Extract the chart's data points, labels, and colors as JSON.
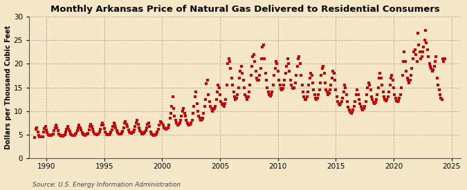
{
  "title": "Monthly Arkansas Price of Natural Gas Delivered to Residential Consumers",
  "ylabel": "Dollars per Thousand Cubic Feet",
  "source": "Source: U.S. Energy Information Administration",
  "background_color": "#f5e8c8",
  "plot_background_color": "#f5e8c8",
  "marker_color": "#cc0000",
  "xlim": [
    1988.5,
    2025.8
  ],
  "ylim": [
    0,
    30
  ],
  "yticks": [
    0,
    5,
    10,
    15,
    20,
    25,
    30
  ],
  "xticks": [
    1990,
    1995,
    2000,
    2005,
    2010,
    2015,
    2020,
    2025
  ],
  "data": [
    [
      1989.0,
      4.4
    ],
    [
      1989.08,
      6.2
    ],
    [
      1989.17,
      6.5
    ],
    [
      1989.25,
      5.5
    ],
    [
      1989.33,
      4.8
    ],
    [
      1989.42,
      4.6
    ],
    [
      1989.5,
      4.5
    ],
    [
      1989.58,
      4.5
    ],
    [
      1989.67,
      4.6
    ],
    [
      1989.75,
      5.5
    ],
    [
      1989.83,
      6.3
    ],
    [
      1989.92,
      6.8
    ],
    [
      1990.0,
      6.0
    ],
    [
      1990.08,
      5.4
    ],
    [
      1990.17,
      5.0
    ],
    [
      1990.25,
      4.8
    ],
    [
      1990.33,
      4.8
    ],
    [
      1990.42,
      4.9
    ],
    [
      1990.5,
      5.0
    ],
    [
      1990.58,
      5.2
    ],
    [
      1990.67,
      5.8
    ],
    [
      1990.75,
      6.5
    ],
    [
      1990.83,
      7.0
    ],
    [
      1990.92,
      6.5
    ],
    [
      1991.0,
      5.8
    ],
    [
      1991.08,
      5.2
    ],
    [
      1991.17,
      4.9
    ],
    [
      1991.25,
      4.8
    ],
    [
      1991.33,
      4.7
    ],
    [
      1991.42,
      4.7
    ],
    [
      1991.5,
      4.8
    ],
    [
      1991.58,
      5.0
    ],
    [
      1991.67,
      5.5
    ],
    [
      1991.75,
      6.2
    ],
    [
      1991.83,
      6.8
    ],
    [
      1991.92,
      6.2
    ],
    [
      1992.0,
      5.7
    ],
    [
      1992.08,
      5.2
    ],
    [
      1992.17,
      5.0
    ],
    [
      1992.25,
      4.9
    ],
    [
      1992.33,
      4.8
    ],
    [
      1992.42,
      4.9
    ],
    [
      1992.5,
      5.1
    ],
    [
      1992.58,
      5.3
    ],
    [
      1992.67,
      5.9
    ],
    [
      1992.75,
      6.4
    ],
    [
      1992.83,
      7.0
    ],
    [
      1992.92,
      6.5
    ],
    [
      1993.0,
      6.0
    ],
    [
      1993.08,
      5.4
    ],
    [
      1993.17,
      5.1
    ],
    [
      1993.25,
      5.0
    ],
    [
      1993.33,
      4.9
    ],
    [
      1993.42,
      5.0
    ],
    [
      1993.5,
      5.1
    ],
    [
      1993.58,
      5.3
    ],
    [
      1993.67,
      6.0
    ],
    [
      1993.75,
      6.8
    ],
    [
      1993.83,
      7.2
    ],
    [
      1993.92,
      6.8
    ],
    [
      1994.0,
      6.2
    ],
    [
      1994.08,
      5.5
    ],
    [
      1994.17,
      5.2
    ],
    [
      1994.25,
      5.1
    ],
    [
      1994.33,
      5.0
    ],
    [
      1994.42,
      5.1
    ],
    [
      1994.5,
      5.2
    ],
    [
      1994.58,
      5.5
    ],
    [
      1994.67,
      6.2
    ],
    [
      1994.75,
      7.0
    ],
    [
      1994.83,
      7.5
    ],
    [
      1994.92,
      7.0
    ],
    [
      1995.0,
      6.3
    ],
    [
      1995.08,
      5.6
    ],
    [
      1995.17,
      5.2
    ],
    [
      1995.25,
      5.0
    ],
    [
      1995.33,
      5.0
    ],
    [
      1995.42,
      5.0
    ],
    [
      1995.5,
      5.2
    ],
    [
      1995.58,
      5.5
    ],
    [
      1995.67,
      6.0
    ],
    [
      1995.75,
      6.8
    ],
    [
      1995.83,
      7.5
    ],
    [
      1995.92,
      7.0
    ],
    [
      1996.0,
      6.5
    ],
    [
      1996.08,
      5.8
    ],
    [
      1996.17,
      5.4
    ],
    [
      1996.25,
      5.2
    ],
    [
      1996.33,
      5.1
    ],
    [
      1996.42,
      5.2
    ],
    [
      1996.5,
      5.4
    ],
    [
      1996.58,
      5.7
    ],
    [
      1996.67,
      6.4
    ],
    [
      1996.75,
      7.5
    ],
    [
      1996.83,
      7.8
    ],
    [
      1996.92,
      7.2
    ],
    [
      1997.0,
      6.8
    ],
    [
      1997.08,
      6.0
    ],
    [
      1997.17,
      5.6
    ],
    [
      1997.25,
      5.4
    ],
    [
      1997.33,
      5.3
    ],
    [
      1997.42,
      5.4
    ],
    [
      1997.5,
      5.6
    ],
    [
      1997.58,
      6.0
    ],
    [
      1997.67,
      6.8
    ],
    [
      1997.75,
      7.5
    ],
    [
      1997.83,
      8.0
    ],
    [
      1997.92,
      7.2
    ],
    [
      1998.0,
      6.5
    ],
    [
      1998.08,
      5.9
    ],
    [
      1998.17,
      5.5
    ],
    [
      1998.25,
      5.3
    ],
    [
      1998.33,
      5.2
    ],
    [
      1998.42,
      5.3
    ],
    [
      1998.5,
      5.5
    ],
    [
      1998.58,
      5.8
    ],
    [
      1998.67,
      6.5
    ],
    [
      1998.75,
      7.2
    ],
    [
      1998.83,
      7.5
    ],
    [
      1998.92,
      6.8
    ],
    [
      1999.0,
      5.6
    ],
    [
      1999.08,
      5.2
    ],
    [
      1999.17,
      5.0
    ],
    [
      1999.25,
      4.9
    ],
    [
      1999.33,
      4.9
    ],
    [
      1999.42,
      5.0
    ],
    [
      1999.5,
      5.2
    ],
    [
      1999.58,
      5.5
    ],
    [
      1999.67,
      6.2
    ],
    [
      1999.75,
      7.0
    ],
    [
      1999.83,
      7.8
    ],
    [
      1999.92,
      7.5
    ],
    [
      2000.0,
      7.5
    ],
    [
      2000.08,
      7.0
    ],
    [
      2000.17,
      6.5
    ],
    [
      2000.25,
      6.3
    ],
    [
      2000.33,
      6.2
    ],
    [
      2000.42,
      6.3
    ],
    [
      2000.5,
      6.5
    ],
    [
      2000.58,
      7.0
    ],
    [
      2000.67,
      8.5
    ],
    [
      2000.75,
      9.5
    ],
    [
      2000.83,
      11.0
    ],
    [
      2000.92,
      13.0
    ],
    [
      2001.0,
      10.5
    ],
    [
      2001.08,
      9.0
    ],
    [
      2001.17,
      8.0
    ],
    [
      2001.25,
      7.5
    ],
    [
      2001.33,
      7.0
    ],
    [
      2001.42,
      7.2
    ],
    [
      2001.5,
      7.5
    ],
    [
      2001.58,
      8.0
    ],
    [
      2001.67,
      9.0
    ],
    [
      2001.75,
      10.0
    ],
    [
      2001.83,
      10.5
    ],
    [
      2001.92,
      9.5
    ],
    [
      2002.0,
      9.0
    ],
    [
      2002.08,
      8.0
    ],
    [
      2002.17,
      7.5
    ],
    [
      2002.25,
      7.2
    ],
    [
      2002.33,
      7.0
    ],
    [
      2002.42,
      7.2
    ],
    [
      2002.5,
      7.5
    ],
    [
      2002.58,
      8.0
    ],
    [
      2002.67,
      9.5
    ],
    [
      2002.75,
      11.0
    ],
    [
      2002.83,
      13.0
    ],
    [
      2002.92,
      14.0
    ],
    [
      2003.0,
      11.5
    ],
    [
      2003.08,
      10.0
    ],
    [
      2003.17,
      9.0
    ],
    [
      2003.25,
      8.5
    ],
    [
      2003.33,
      8.0
    ],
    [
      2003.42,
      8.2
    ],
    [
      2003.5,
      8.5
    ],
    [
      2003.58,
      9.5
    ],
    [
      2003.67,
      11.0
    ],
    [
      2003.75,
      12.5
    ],
    [
      2003.83,
      15.8
    ],
    [
      2003.92,
      16.5
    ],
    [
      2004.0,
      13.5
    ],
    [
      2004.08,
      12.0
    ],
    [
      2004.17,
      11.0
    ],
    [
      2004.25,
      10.5
    ],
    [
      2004.33,
      10.0
    ],
    [
      2004.42,
      10.2
    ],
    [
      2004.5,
      10.5
    ],
    [
      2004.58,
      11.0
    ],
    [
      2004.67,
      12.5
    ],
    [
      2004.75,
      14.0
    ],
    [
      2004.83,
      15.5
    ],
    [
      2004.92,
      15.0
    ],
    [
      2005.0,
      13.5
    ],
    [
      2005.08,
      12.0
    ],
    [
      2005.17,
      11.5
    ],
    [
      2005.25,
      11.2
    ],
    [
      2005.33,
      11.0
    ],
    [
      2005.42,
      11.5
    ],
    [
      2005.5,
      12.5
    ],
    [
      2005.58,
      15.5
    ],
    [
      2005.67,
      20.0
    ],
    [
      2005.75,
      21.0
    ],
    [
      2005.83,
      20.5
    ],
    [
      2005.92,
      19.0
    ],
    [
      2006.0,
      17.0
    ],
    [
      2006.08,
      15.5
    ],
    [
      2006.17,
      14.0
    ],
    [
      2006.25,
      13.0
    ],
    [
      2006.33,
      12.5
    ],
    [
      2006.42,
      12.8
    ],
    [
      2006.5,
      13.5
    ],
    [
      2006.58,
      15.0
    ],
    [
      2006.67,
      17.0
    ],
    [
      2006.75,
      18.5
    ],
    [
      2006.83,
      19.5
    ],
    [
      2006.92,
      18.0
    ],
    [
      2007.0,
      16.5
    ],
    [
      2007.08,
      15.0
    ],
    [
      2007.17,
      13.5
    ],
    [
      2007.25,
      13.0
    ],
    [
      2007.33,
      12.5
    ],
    [
      2007.42,
      13.0
    ],
    [
      2007.5,
      14.0
    ],
    [
      2007.58,
      15.5
    ],
    [
      2007.67,
      17.5
    ],
    [
      2007.75,
      19.5
    ],
    [
      2007.83,
      21.5
    ],
    [
      2007.92,
      22.0
    ],
    [
      2008.0,
      20.5
    ],
    [
      2008.08,
      18.5
    ],
    [
      2008.17,
      17.0
    ],
    [
      2008.25,
      16.5
    ],
    [
      2008.33,
      16.5
    ],
    [
      2008.42,
      17.5
    ],
    [
      2008.5,
      19.0
    ],
    [
      2008.58,
      21.0
    ],
    [
      2008.67,
      23.5
    ],
    [
      2008.75,
      24.0
    ],
    [
      2008.83,
      21.0
    ],
    [
      2008.92,
      18.0
    ],
    [
      2009.0,
      16.5
    ],
    [
      2009.08,
      15.0
    ],
    [
      2009.17,
      14.0
    ],
    [
      2009.25,
      13.5
    ],
    [
      2009.33,
      13.2
    ],
    [
      2009.42,
      13.5
    ],
    [
      2009.5,
      14.0
    ],
    [
      2009.58,
      15.5
    ],
    [
      2009.67,
      17.5
    ],
    [
      2009.75,
      19.0
    ],
    [
      2009.83,
      20.5
    ],
    [
      2009.92,
      20.0
    ],
    [
      2010.0,
      18.5
    ],
    [
      2010.08,
      16.5
    ],
    [
      2010.17,
      15.5
    ],
    [
      2010.25,
      14.8
    ],
    [
      2010.33,
      14.5
    ],
    [
      2010.42,
      14.8
    ],
    [
      2010.5,
      15.5
    ],
    [
      2010.58,
      16.5
    ],
    [
      2010.67,
      18.0
    ],
    [
      2010.75,
      19.5
    ],
    [
      2010.83,
      21.0
    ],
    [
      2010.92,
      20.0
    ],
    [
      2011.0,
      18.5
    ],
    [
      2011.08,
      16.5
    ],
    [
      2011.17,
      15.5
    ],
    [
      2011.25,
      15.0
    ],
    [
      2011.33,
      14.8
    ],
    [
      2011.42,
      15.0
    ],
    [
      2011.5,
      16.0
    ],
    [
      2011.58,
      17.5
    ],
    [
      2011.67,
      19.5
    ],
    [
      2011.75,
      21.0
    ],
    [
      2011.83,
      21.5
    ],
    [
      2011.92,
      20.0
    ],
    [
      2012.0,
      17.5
    ],
    [
      2012.08,
      15.5
    ],
    [
      2012.17,
      14.0
    ],
    [
      2012.25,
      13.0
    ],
    [
      2012.33,
      12.5
    ],
    [
      2012.42,
      12.5
    ],
    [
      2012.5,
      13.0
    ],
    [
      2012.58,
      14.0
    ],
    [
      2012.67,
      15.5
    ],
    [
      2012.75,
      17.0
    ],
    [
      2012.83,
      18.0
    ],
    [
      2012.92,
      17.5
    ],
    [
      2013.0,
      16.0
    ],
    [
      2013.08,
      14.5
    ],
    [
      2013.17,
      13.5
    ],
    [
      2013.25,
      12.8
    ],
    [
      2013.33,
      12.5
    ],
    [
      2013.42,
      12.8
    ],
    [
      2013.5,
      13.5
    ],
    [
      2013.58,
      14.5
    ],
    [
      2013.67,
      16.0
    ],
    [
      2013.75,
      17.5
    ],
    [
      2013.83,
      19.0
    ],
    [
      2013.92,
      19.5
    ],
    [
      2014.0,
      18.0
    ],
    [
      2014.08,
      16.0
    ],
    [
      2014.17,
      14.5
    ],
    [
      2014.25,
      14.0
    ],
    [
      2014.33,
      13.5
    ],
    [
      2014.42,
      13.8
    ],
    [
      2014.5,
      14.5
    ],
    [
      2014.58,
      15.5
    ],
    [
      2014.67,
      17.0
    ],
    [
      2014.75,
      18.5
    ],
    [
      2014.83,
      18.0
    ],
    [
      2014.92,
      16.5
    ],
    [
      2015.0,
      14.5
    ],
    [
      2015.08,
      13.0
    ],
    [
      2015.17,
      12.0
    ],
    [
      2015.25,
      11.5
    ],
    [
      2015.33,
      11.2
    ],
    [
      2015.42,
      11.5
    ],
    [
      2015.5,
      12.0
    ],
    [
      2015.58,
      12.8
    ],
    [
      2015.67,
      14.0
    ],
    [
      2015.75,
      15.5
    ],
    [
      2015.83,
      15.0
    ],
    [
      2015.92,
      13.5
    ],
    [
      2016.0,
      12.0
    ],
    [
      2016.08,
      10.8
    ],
    [
      2016.17,
      10.2
    ],
    [
      2016.25,
      9.8
    ],
    [
      2016.33,
      9.5
    ],
    [
      2016.42,
      9.8
    ],
    [
      2016.5,
      10.2
    ],
    [
      2016.58,
      11.0
    ],
    [
      2016.67,
      12.0
    ],
    [
      2016.75,
      13.5
    ],
    [
      2016.83,
      14.5
    ],
    [
      2016.92,
      13.5
    ],
    [
      2017.0,
      12.5
    ],
    [
      2017.08,
      11.5
    ],
    [
      2017.17,
      11.0
    ],
    [
      2017.25,
      10.5
    ],
    [
      2017.33,
      10.2
    ],
    [
      2017.42,
      10.5
    ],
    [
      2017.5,
      11.0
    ],
    [
      2017.58,
      12.0
    ],
    [
      2017.67,
      13.5
    ],
    [
      2017.75,
      15.0
    ],
    [
      2017.83,
      16.0
    ],
    [
      2017.92,
      15.5
    ],
    [
      2018.0,
      14.5
    ],
    [
      2018.08,
      13.0
    ],
    [
      2018.17,
      12.5
    ],
    [
      2018.25,
      11.8
    ],
    [
      2018.33,
      11.5
    ],
    [
      2018.42,
      11.8
    ],
    [
      2018.5,
      12.5
    ],
    [
      2018.58,
      13.5
    ],
    [
      2018.67,
      15.0
    ],
    [
      2018.75,
      17.0
    ],
    [
      2018.83,
      18.0
    ],
    [
      2018.92,
      17.0
    ],
    [
      2019.0,
      15.5
    ],
    [
      2019.08,
      14.0
    ],
    [
      2019.17,
      13.0
    ],
    [
      2019.25,
      12.5
    ],
    [
      2019.33,
      12.2
    ],
    [
      2019.42,
      12.5
    ],
    [
      2019.5,
      13.0
    ],
    [
      2019.58,
      14.0
    ],
    [
      2019.67,
      15.5
    ],
    [
      2019.75,
      17.0
    ],
    [
      2019.83,
      17.5
    ],
    [
      2019.92,
      16.5
    ],
    [
      2020.0,
      15.0
    ],
    [
      2020.08,
      13.5
    ],
    [
      2020.17,
      12.8
    ],
    [
      2020.25,
      12.2
    ],
    [
      2020.33,
      12.0
    ],
    [
      2020.42,
      12.2
    ],
    [
      2020.5,
      12.8
    ],
    [
      2020.58,
      13.5
    ],
    [
      2020.67,
      15.0
    ],
    [
      2020.75,
      17.5
    ],
    [
      2020.83,
      20.5
    ],
    [
      2020.92,
      22.5
    ],
    [
      2021.0,
      20.5
    ],
    [
      2021.08,
      18.5
    ],
    [
      2021.17,
      17.0
    ],
    [
      2021.25,
      16.5
    ],
    [
      2021.33,
      16.0
    ],
    [
      2021.42,
      16.5
    ],
    [
      2021.5,
      17.5
    ],
    [
      2021.58,
      19.0
    ],
    [
      2021.67,
      21.0
    ],
    [
      2021.75,
      22.5
    ],
    [
      2021.83,
      23.0
    ],
    [
      2021.92,
      22.0
    ],
    [
      2022.0,
      20.5
    ],
    [
      2022.08,
      26.5
    ],
    [
      2022.17,
      24.0
    ],
    [
      2022.25,
      22.5
    ],
    [
      2022.33,
      21.0
    ],
    [
      2022.42,
      21.5
    ],
    [
      2022.5,
      22.5
    ],
    [
      2022.58,
      23.5
    ],
    [
      2022.67,
      25.0
    ],
    [
      2022.75,
      27.0
    ],
    [
      2022.83,
      24.5
    ],
    [
      2022.92,
      23.0
    ],
    [
      2023.0,
      21.5
    ],
    [
      2023.08,
      20.0
    ],
    [
      2023.17,
      19.5
    ],
    [
      2023.25,
      19.0
    ],
    [
      2023.33,
      18.5
    ],
    [
      2023.42,
      18.8
    ],
    [
      2023.5,
      19.5
    ],
    [
      2023.58,
      20.5
    ],
    [
      2023.67,
      21.5
    ],
    [
      2023.75,
      17.0
    ],
    [
      2023.83,
      15.5
    ],
    [
      2023.92,
      14.5
    ],
    [
      2024.0,
      13.5
    ],
    [
      2024.08,
      12.8
    ],
    [
      2024.17,
      12.5
    ],
    [
      2024.25,
      21.0
    ],
    [
      2024.33,
      20.5
    ],
    [
      2024.42,
      21.0
    ]
  ]
}
